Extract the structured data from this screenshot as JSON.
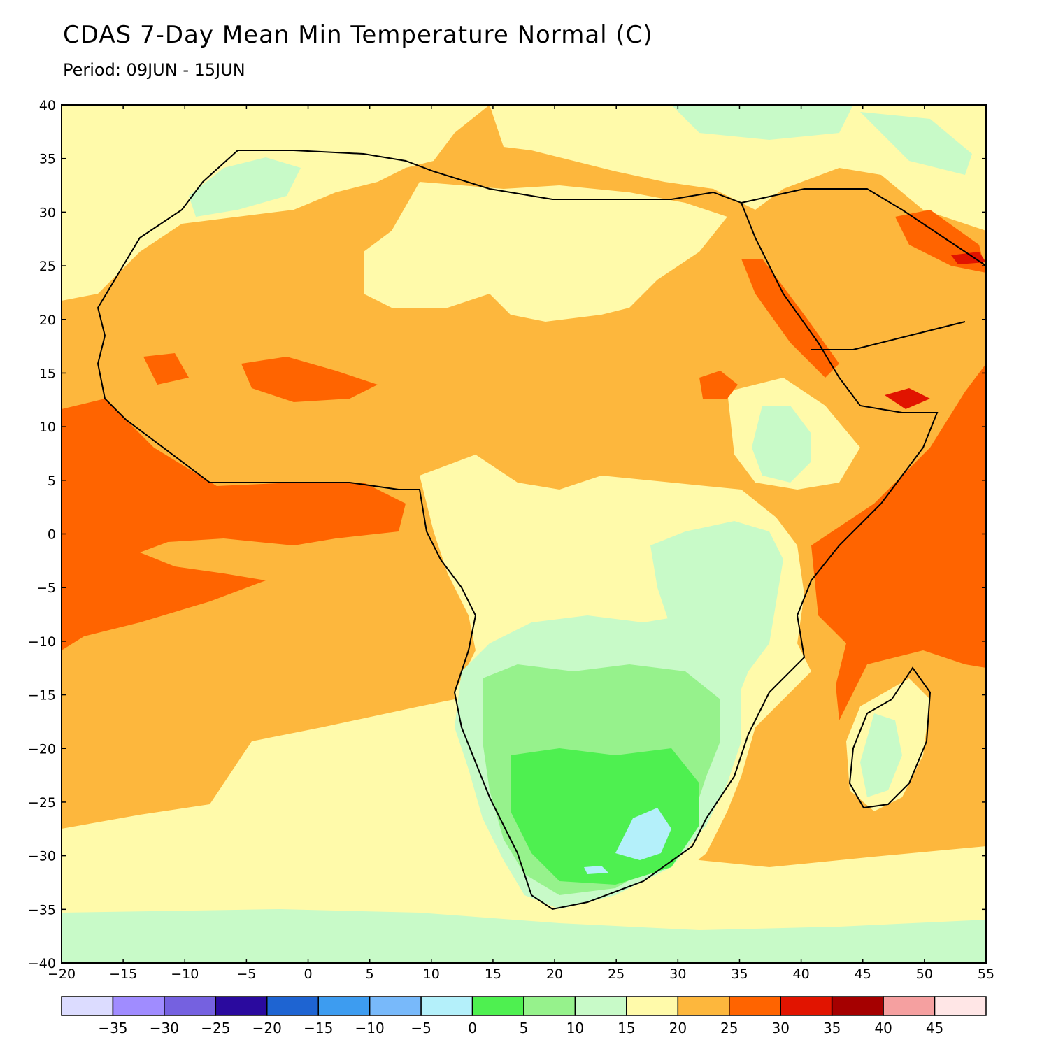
{
  "title": "CDAS 7-Day Mean Min Temperature Normal (C)",
  "subtitle": "Period: 09JUN - 15JUN",
  "map": {
    "lon_range": [
      -20,
      55
    ],
    "lat_range": [
      -40,
      40
    ],
    "lon_ticks": [
      -20,
      -15,
      -10,
      -5,
      0,
      5,
      10,
      15,
      20,
      25,
      30,
      35,
      40,
      45,
      50,
      55
    ],
    "lat_ticks": [
      -40,
      -35,
      -30,
      -25,
      -20,
      -15,
      -10,
      -5,
      0,
      5,
      10,
      15,
      20,
      25,
      30,
      35,
      40
    ],
    "ocean_color": "#fdb73d"
  },
  "colorbar": {
    "colors": [
      "#dcdcff",
      "#a08cff",
      "#7561e0",
      "#2a0a9e",
      "#1e64d2",
      "#3d9cf0",
      "#78b9fa",
      "#b4f0fa",
      "#4ef050",
      "#96f28c",
      "#c8fac8",
      "#fffaaa",
      "#fdb73d",
      "#ff6400",
      "#e11400",
      "#a50000",
      "#f5a0a0",
      "#ffe6e6"
    ],
    "labels": [
      "-35",
      "-30",
      "-25",
      "-20",
      "-15",
      "-10",
      "-5",
      "0",
      "5",
      "10",
      "15",
      "20",
      "25",
      "30",
      "35",
      "40",
      "45"
    ]
  }
}
